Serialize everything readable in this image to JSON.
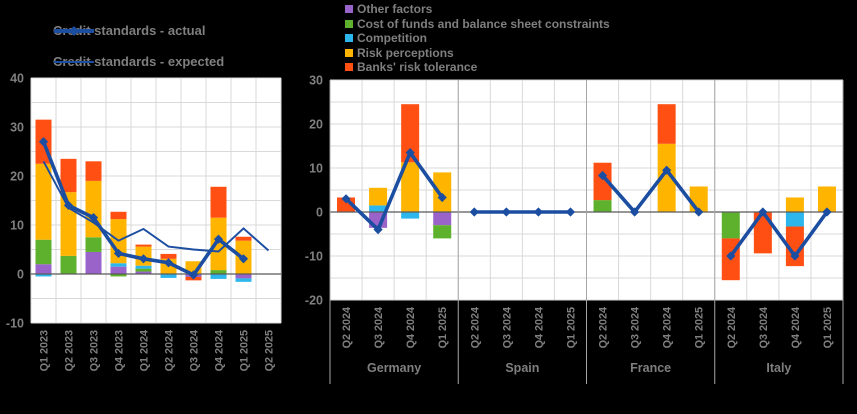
{
  "colors": {
    "purple": "#9A63C9",
    "green": "#5EB12C",
    "cyan": "#2CB6EC",
    "amber": "#FFB400",
    "red": "#FF4F12",
    "blue": "#1B4DA1",
    "axis_text": "#7F7F7F",
    "grid": "#D9D9D9",
    "zero_line": "#595959",
    "separator": "#A6A6A6",
    "plot_bg": "#FFFFFF",
    "page_bg": "#000000"
  },
  "legend_lines": {
    "items": [
      {
        "label": "Credit standards - actual",
        "style": "thick"
      },
      {
        "label": "Credit standards - expected",
        "style": "thin"
      }
    ]
  },
  "legend_bars": {
    "items": [
      {
        "label": "Other factors",
        "color": "purple"
      },
      {
        "label": "Cost of funds and balance sheet constraints",
        "color": "green"
      },
      {
        "label": "Competition",
        "color": "cyan"
      },
      {
        "label": "Risk perceptions",
        "color": "amber"
      },
      {
        "label": "Banks' risk tolerance",
        "color": "red"
      }
    ]
  },
  "chart_data": [
    {
      "id": "euro-area-credit-standards",
      "type": "bar+line",
      "categories": [
        "Q1 2023",
        "Q2 2023",
        "Q3 2023",
        "Q4 2023",
        "Q1 2024",
        "Q2 2024",
        "Q3 2024",
        "Q4 2024",
        "Q1 2025",
        "Q2 2025"
      ],
      "ylim": [
        -10,
        40
      ],
      "grid_step": 5,
      "ytick_step": 10,
      "grid": true,
      "bar_series": [
        {
          "name": "Other factors",
          "color": "purple",
          "values": [
            2,
            0,
            4.5,
            1.5,
            0.5,
            0,
            -0.6,
            0,
            -0.9,
            0
          ]
        },
        {
          "name": "Cost of funds and balance sheet constraints",
          "color": "green",
          "values": [
            5,
            3.7,
            3,
            -0.5,
            0.6,
            0,
            0,
            0.8,
            0,
            0
          ]
        },
        {
          "name": "Competition",
          "color": "cyan",
          "values": [
            -0.5,
            0,
            0,
            0.7,
            0.6,
            -0.8,
            0,
            -1,
            -0.7,
            0
          ]
        },
        {
          "name": "Risk perceptions",
          "color": "amber",
          "values": [
            15.5,
            13,
            11.5,
            9,
            3.9,
            3.1,
            2.6,
            10.7,
            6.8,
            0
          ]
        },
        {
          "name": "Banks' risk tolerance",
          "color": "red",
          "values": [
            9,
            6.8,
            4,
            1.5,
            0.4,
            1,
            -0.7,
            6.3,
            0.8,
            0
          ]
        }
      ],
      "line_series": [
        {
          "name": "Credit standards - actual",
          "style": "thick",
          "values": [
            27,
            14,
            11.5,
            4.2,
            3.1,
            2.3,
            -0.2,
            7.1,
            3.1,
            null
          ]
        },
        {
          "name": "Credit standards - expected",
          "style": "thin",
          "values": [
            23,
            13.5,
            10.5,
            6.8,
            9.2,
            5.6,
            5,
            4.6,
            9.3,
            4.8
          ]
        }
      ]
    },
    {
      "id": "credit-standards-by-country",
      "type": "bar+line",
      "group_labels": [
        "Germany",
        "Spain",
        "France",
        "Italy"
      ],
      "group_size": 4,
      "categories": [
        "Q2 2024",
        "Q3 2024",
        "Q4 2024",
        "Q1 2025",
        "Q2 2024",
        "Q3 2024",
        "Q4 2024",
        "Q1 2025",
        "Q2 2024",
        "Q3 2024",
        "Q4 2024",
        "Q1 2025",
        "Q2 2024",
        "Q3 2024",
        "Q4 2024",
        "Q1 2025"
      ],
      "ylim": [
        -20,
        30
      ],
      "grid_step": 5,
      "ytick_step": 10,
      "grid": true,
      "bar_series": [
        {
          "name": "Other factors",
          "color": "purple",
          "values": [
            0,
            -3.6,
            0,
            -3,
            0,
            0,
            0,
            0,
            0,
            0,
            0,
            0,
            0,
            0,
            0,
            0
          ]
        },
        {
          "name": "Cost of funds and balance sheet constraints",
          "color": "green",
          "values": [
            0,
            0,
            0,
            -3,
            0,
            0,
            0,
            0,
            2.7,
            0,
            0,
            0,
            -6,
            0,
            0,
            0
          ]
        },
        {
          "name": "Competition",
          "color": "cyan",
          "values": [
            0,
            1.5,
            -1.5,
            0,
            0,
            0,
            0,
            0,
            0,
            0,
            0,
            0,
            0,
            0,
            -3.3,
            0
          ]
        },
        {
          "name": "Risk perceptions",
          "color": "amber",
          "values": [
            0,
            4,
            11.3,
            9,
            0,
            0,
            0,
            0,
            0,
            0,
            15.5,
            5.8,
            0,
            0,
            3.3,
            5.8
          ]
        },
        {
          "name": "Banks' risk tolerance",
          "color": "red",
          "values": [
            3.3,
            0,
            13.2,
            0,
            0,
            0,
            0,
            0,
            8.5,
            0,
            9,
            0,
            -9.5,
            -9.4,
            -9,
            0
          ]
        }
      ],
      "line_series": [
        {
          "name": "Credit standards - actual",
          "style": "thick",
          "values": [
            3,
            -4,
            13.5,
            3.3,
            0,
            0,
            0,
            0,
            8.3,
            0,
            9.5,
            0,
            -10,
            0,
            -10,
            0
          ]
        }
      ]
    }
  ]
}
